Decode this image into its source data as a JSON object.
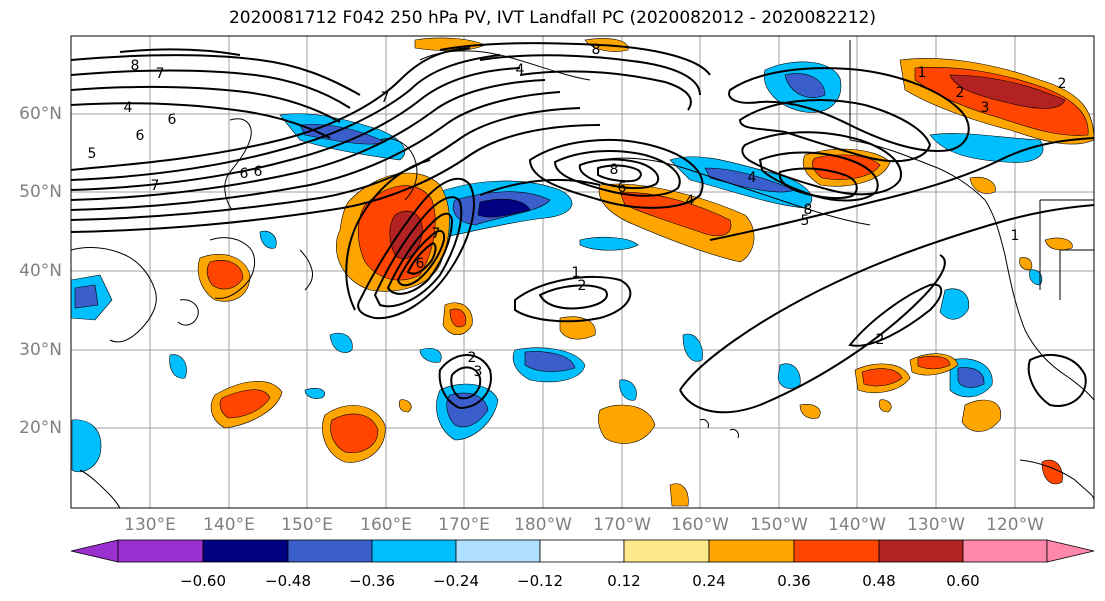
{
  "title": "2020081712 F042 250 hPa PV, IVT Landfall PC (2020082012 - 2020082212)",
  "latitude_labels": [
    "60°N",
    "50°N",
    "40°N",
    "30°N",
    "20°N"
  ],
  "longitude_labels": [
    "130°E",
    "140°E",
    "150°E",
    "160°E",
    "170°E",
    "180°W",
    "170°W",
    "160°W",
    "150°W",
    "140°W",
    "130°W",
    "120°W"
  ],
  "colorbar": {
    "tick_labels": [
      "−0.60",
      "−0.48",
      "−0.36",
      "−0.24",
      "−0.12",
      "0.12",
      "0.24",
      "0.36",
      "0.48",
      "0.60"
    ],
    "colors": [
      "#9b30d0",
      "#000080",
      "#3a5fcd",
      "#00bfff",
      "#b0e0ff",
      "#ffffff",
      "#ffe98a",
      "#ffa500",
      "#ff4500",
      "#b22222",
      "#ff88aa"
    ]
  },
  "contour_labels": [
    "8",
    "7",
    "6",
    "4",
    "6",
    "7",
    "6",
    "5",
    "6",
    "7",
    "4",
    "8",
    "8",
    "7",
    "6",
    "2",
    "2",
    "1",
    "2",
    "3",
    "6",
    "4",
    "5",
    "4",
    "8",
    "2",
    "3",
    "1",
    "2",
    "1"
  ],
  "shading_colors": {
    "light_blue": "#b0e0ff",
    "cyan": "#00bfff",
    "blue": "#3a5fcd",
    "navy": "#000080",
    "yellow": "#ffe98a",
    "orange": "#ffa500",
    "red_orange": "#ff4500",
    "dark_red": "#b22222"
  }
}
